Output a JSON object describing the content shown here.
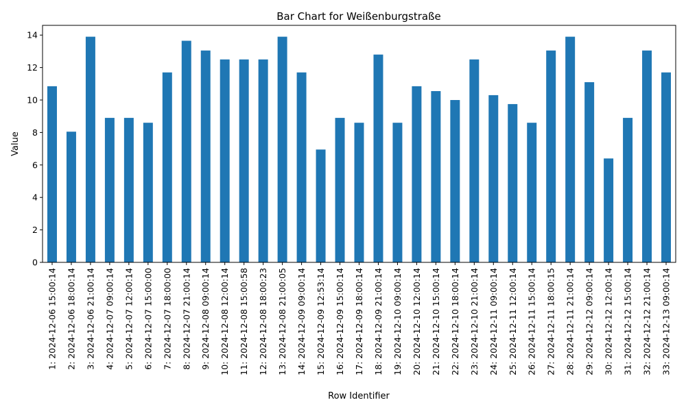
{
  "chart_data": {
    "type": "bar",
    "title": "Bar Chart for Weißenburgstraße",
    "xlabel": "Row Identifier",
    "ylabel": "Value",
    "ylim": [
      0,
      14.6
    ],
    "yticks": [
      0,
      2,
      4,
      6,
      8,
      10,
      12,
      14
    ],
    "grid": false,
    "bar_color": "#1f77b4",
    "categories": [
      "1: 2024-12-06 15:00:14",
      "2: 2024-12-06 18:00:14",
      "3: 2024-12-06 21:00:14",
      "4: 2024-12-07 09:00:14",
      "5: 2024-12-07 12:00:14",
      "6: 2024-12-07 15:00:00",
      "7: 2024-12-07 18:00:00",
      "8: 2024-12-07 21:00:14",
      "9: 2024-12-08 09:00:14",
      "10: 2024-12-08 12:00:14",
      "11: 2024-12-08 15:00:58",
      "12: 2024-12-08 18:00:23",
      "13: 2024-12-08 21:00:05",
      "14: 2024-12-09 09:00:14",
      "15: 2024-12-09 12:53:14",
      "16: 2024-12-09 15:00:14",
      "17: 2024-12-09 18:00:14",
      "18: 2024-12-09 21:00:14",
      "19: 2024-12-10 09:00:14",
      "20: 2024-12-10 12:00:14",
      "21: 2024-12-10 15:00:14",
      "22: 2024-12-10 18:00:14",
      "23: 2024-12-10 21:00:14",
      "24: 2024-12-11 09:00:14",
      "25: 2024-12-11 12:00:14",
      "26: 2024-12-11 15:00:14",
      "27: 2024-12-11 18:00:15",
      "28: 2024-12-11 21:00:14",
      "29: 2024-12-12 09:00:14",
      "30: 2024-12-12 12:00:14",
      "31: 2024-12-12 15:00:14",
      "32: 2024-12-12 21:00:14",
      "33: 2024-12-13 09:00:14"
    ],
    "values": [
      10.85,
      8.05,
      13.9,
      8.9,
      8.9,
      8.6,
      11.7,
      13.65,
      13.05,
      12.5,
      12.5,
      12.5,
      13.9,
      11.7,
      6.95,
      8.9,
      8.6,
      12.8,
      8.6,
      10.85,
      10.55,
      10.0,
      12.5,
      10.3,
      9.75,
      8.6,
      13.05,
      13.9,
      11.1,
      6.4,
      8.9,
      13.05,
      11.7
    ]
  }
}
